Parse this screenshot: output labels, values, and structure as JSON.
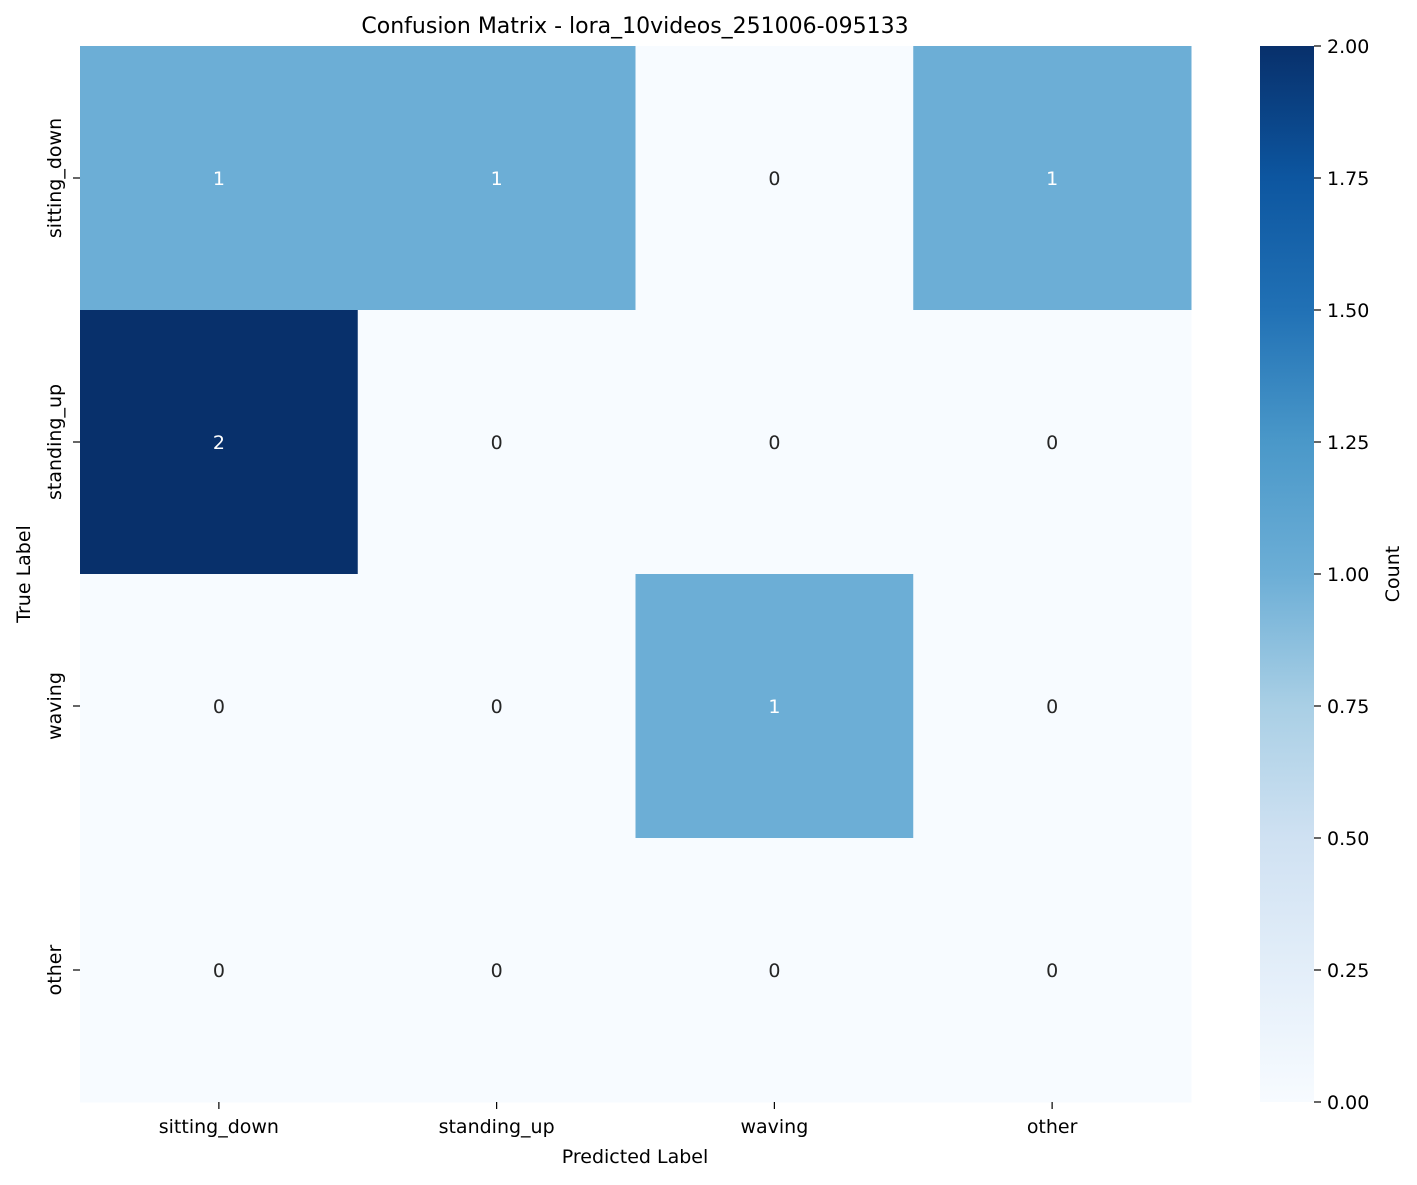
{
  "chart_data": {
    "type": "heatmap",
    "title": "Confusion Matrix - lora_10videos_251006-095133",
    "xlabel": "Predicted Label",
    "ylabel": "True Label",
    "x_categories": [
      "sitting_down",
      "standing_up",
      "waving",
      "other"
    ],
    "y_categories": [
      "sitting_down",
      "standing_up",
      "waving",
      "other"
    ],
    "values": [
      [
        1,
        1,
        0,
        1
      ],
      [
        2,
        0,
        0,
        0
      ],
      [
        0,
        0,
        1,
        0
      ],
      [
        0,
        0,
        0,
        0
      ]
    ],
    "colorbar": {
      "label": "Count",
      "range": [
        0,
        2
      ],
      "ticks": [
        "0.00",
        "0.25",
        "0.50",
        "0.75",
        "1.00",
        "1.25",
        "1.50",
        "1.75",
        "2.00"
      ],
      "colormap": "Blues"
    }
  }
}
